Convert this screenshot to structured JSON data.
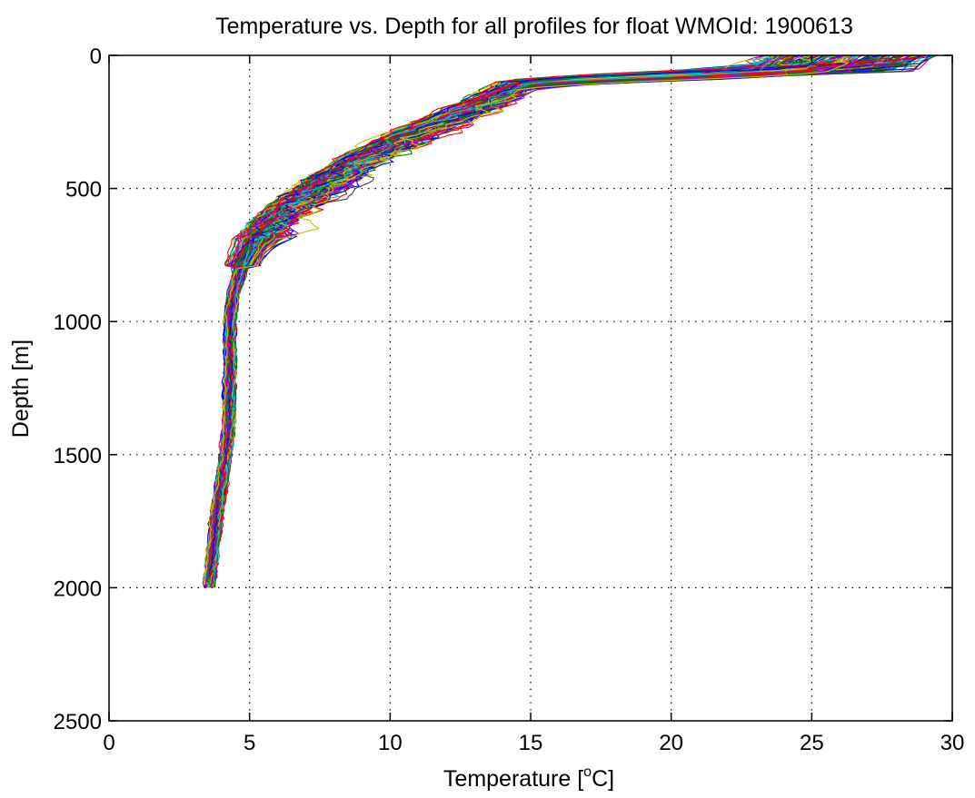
{
  "chart_data": {
    "type": "line",
    "title": "Temperature vs. Depth for all profiles for float WMOId: 1900613",
    "xlabel": "Temperature [°C]",
    "xlabel_prefix": "Temperature [",
    "xlabel_sup": "o",
    "xlabel_suffix": "C]",
    "ylabel": "Depth [m]",
    "xlim": [
      0,
      30
    ],
    "ylim": [
      0,
      2500
    ],
    "y_reversed": true,
    "x_ticks": [
      0,
      5,
      10,
      15,
      20,
      25,
      30
    ],
    "y_ticks": [
      0,
      500,
      1000,
      1500,
      2000,
      2500
    ],
    "x_tick_labels": [
      "0",
      "5",
      "10",
      "15",
      "20",
      "25",
      "30"
    ],
    "y_tick_labels": [
      "0",
      "500",
      "1000",
      "1500",
      "2000",
      "2500"
    ],
    "grid": true,
    "legend": "none",
    "series_count": 160,
    "series_colors": [
      "#0000ff",
      "#008000",
      "#ff0000",
      "#00bfbf",
      "#bf00bf",
      "#bfbf00",
      "#404040"
    ],
    "reference_profile": {
      "depth": [
        0,
        20,
        50,
        70,
        90,
        110,
        150,
        200,
        250,
        300,
        400,
        500,
        600,
        700,
        800,
        900,
        1000,
        1200,
        1400,
        1500,
        1600,
        1700,
        1800,
        1900,
        2000
      ],
      "temperature": [
        27.0,
        26.8,
        25.5,
        22.0,
        17.0,
        14.5,
        13.8,
        12.8,
        11.8,
        10.6,
        8.8,
        7.3,
        6.0,
        5.2,
        4.7,
        4.4,
        4.3,
        4.3,
        4.25,
        4.15,
        4.0,
        3.85,
        3.75,
        3.65,
        3.55
      ]
    },
    "profile_spread": {
      "surface_temperature_range": [
        23.3,
        29.5
      ],
      "surface_depth_range": [
        0,
        80
      ],
      "deep_profile_end_depth_range": [
        1960,
        2010
      ]
    }
  }
}
